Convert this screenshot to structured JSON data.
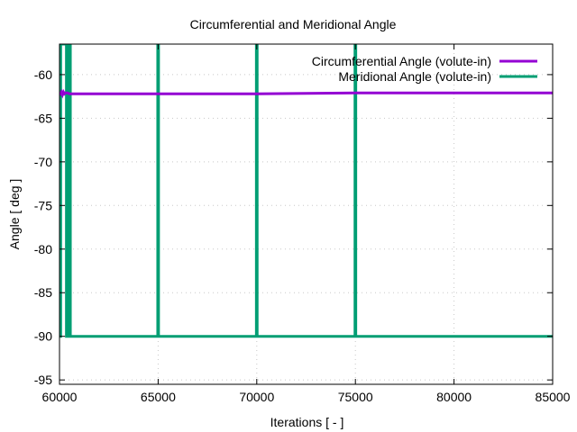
{
  "chart_data": {
    "type": "line",
    "title": "Circumferential and Meridional Angle",
    "xlabel": "Iterations [ - ]",
    "ylabel": "Angle [ deg ]",
    "xlim": [
      60000,
      85000
    ],
    "ylim": [
      -95.5,
      -56.5
    ],
    "xticks": [
      60000,
      65000,
      70000,
      75000,
      80000,
      85000
    ],
    "yticks": [
      -95,
      -90,
      -85,
      -80,
      -75,
      -70,
      -65,
      -60
    ],
    "grid": true,
    "legend_position": "top-right",
    "series": [
      {
        "name": "Circumferential Angle (volute-in)",
        "color": "#9400d3",
        "x": [
          60000,
          60050,
          60100,
          60150,
          60200,
          60250,
          60300,
          60400,
          60500,
          61000,
          65000,
          70000,
          75000,
          80000,
          85000
        ],
        "y": [
          -62.1,
          -62.2,
          -62.0,
          -62.3,
          -62.0,
          -62.2,
          -62.1,
          -62.1,
          -62.2,
          -62.2,
          -62.2,
          -62.2,
          -62.1,
          -62.1,
          -62.1
        ]
      },
      {
        "name": "Meridional Angle (volute-in)",
        "color": "#009e73",
        "x": [
          60000,
          60000,
          60020,
          60020,
          60060,
          60060,
          60350,
          60350,
          60420,
          60420,
          60550,
          60550,
          64980,
          64980,
          65020,
          65020,
          69980,
          69980,
          70020,
          70020,
          74980,
          74980,
          75020,
          75020,
          85000
        ],
        "y": [
          -90.0,
          -56.5,
          -56.5,
          -90.0,
          -90.0,
          -56.5,
          -56.5,
          -90.0,
          -90.0,
          -56.5,
          -56.5,
          -90.0,
          -90.0,
          -56.5,
          -56.5,
          -90.0,
          -90.0,
          -56.5,
          -56.5,
          -90.0,
          -90.0,
          -56.5,
          -56.5,
          -90.0,
          -90.0
        ]
      }
    ]
  }
}
